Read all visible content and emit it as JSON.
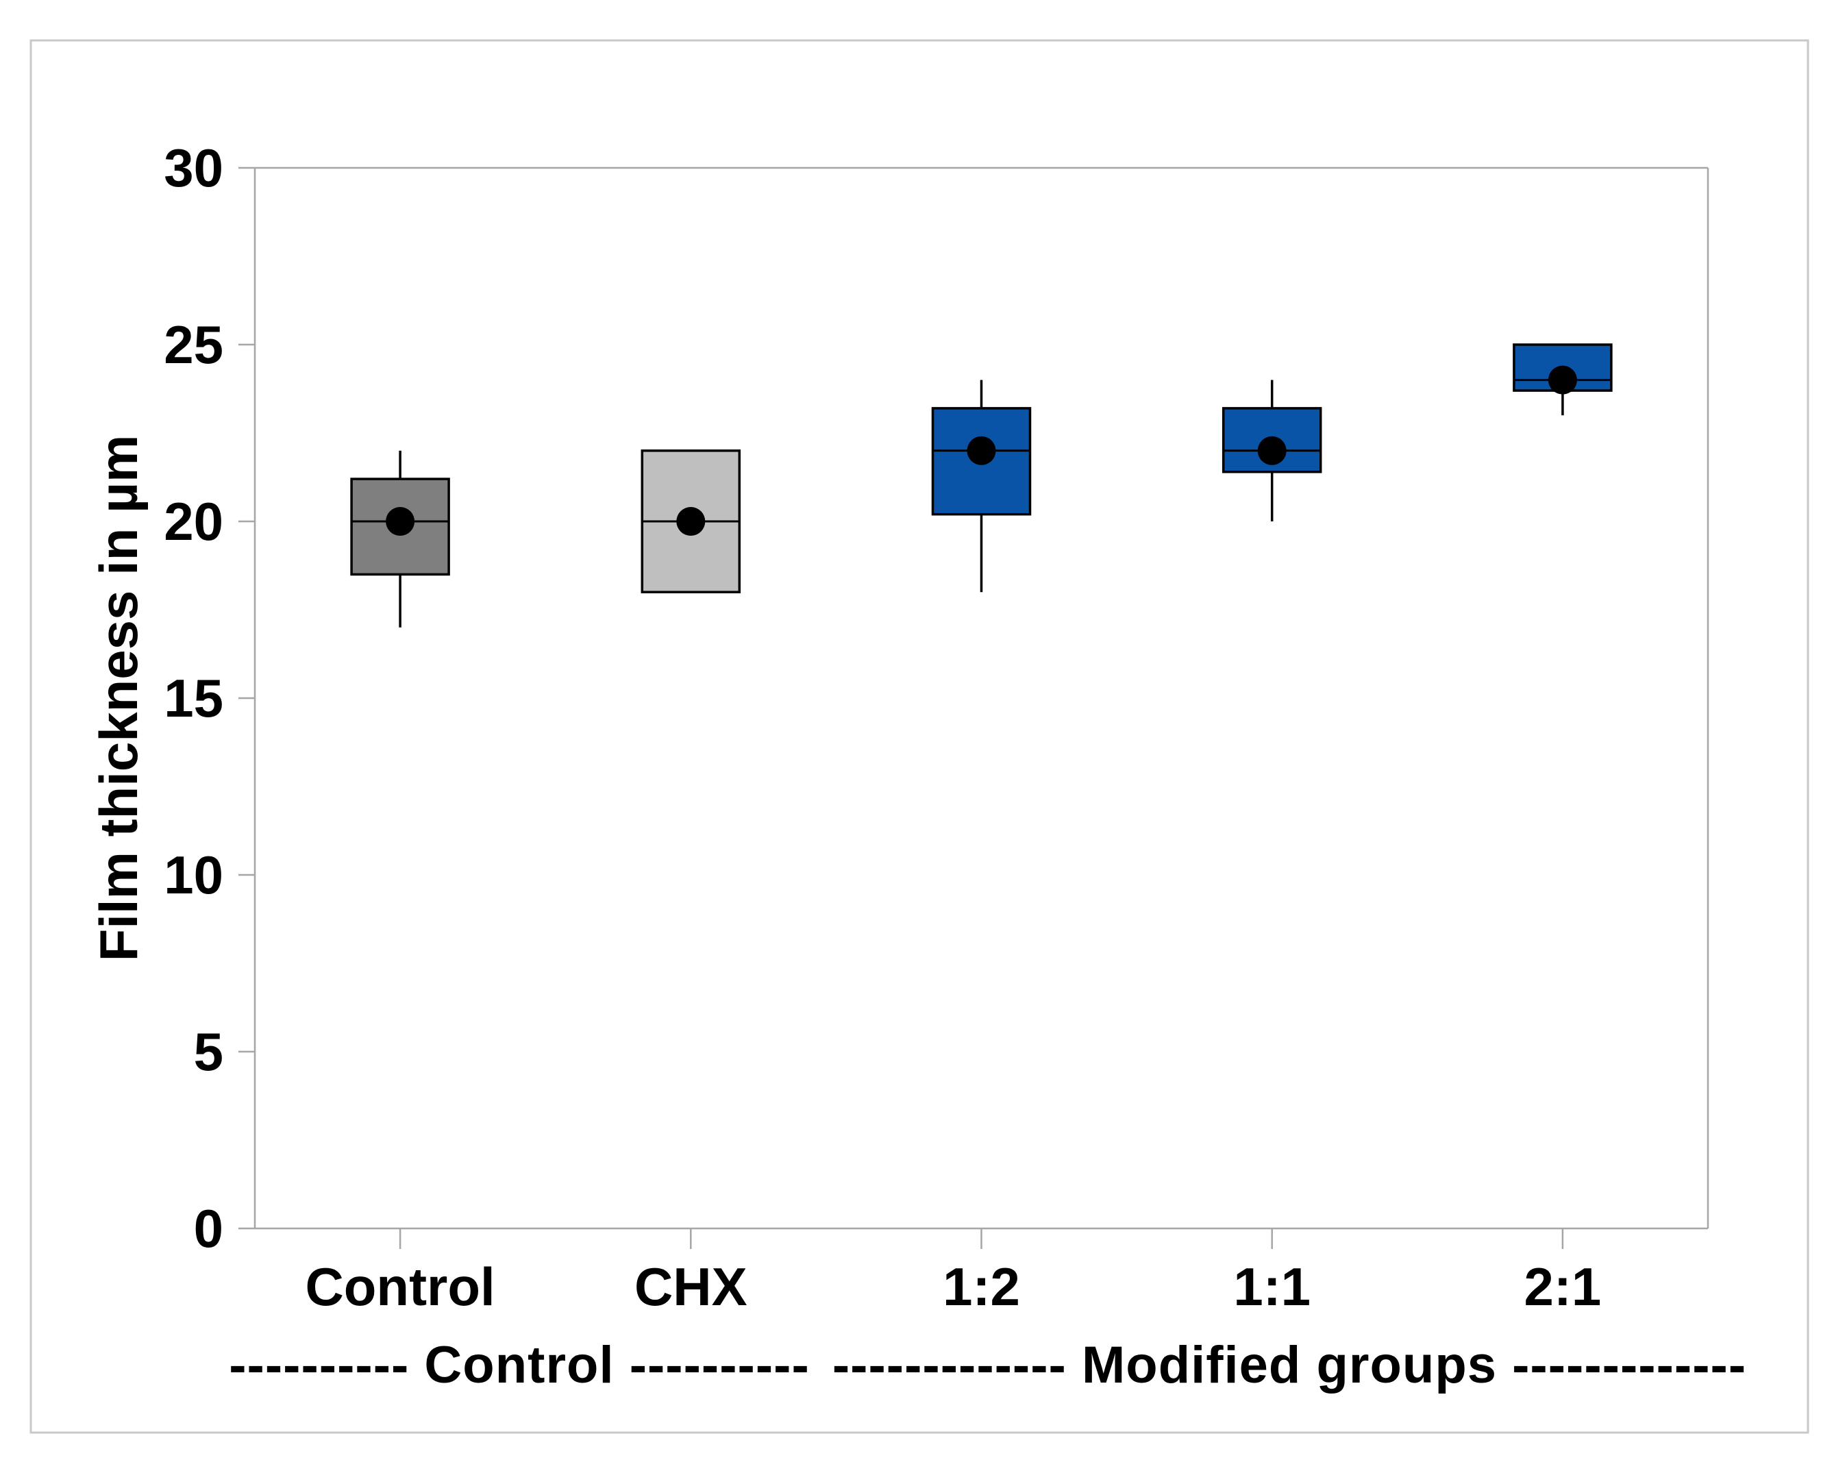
{
  "figure_title": "",
  "chart_data": {
    "type": "boxplot",
    "title": "",
    "xlabel": "",
    "ylabel": "Film thickness in µm",
    "ylim": [
      0,
      30
    ],
    "yticks": [
      0,
      5,
      10,
      15,
      20,
      25,
      30
    ],
    "grid": "off",
    "legend": "none",
    "categories": [
      "Control",
      "CHX",
      "1:2",
      "1:1",
      "2:1"
    ],
    "series": [
      {
        "category": "Control",
        "min": 17.0,
        "q1": 18.5,
        "median": 20.0,
        "q3": 21.2,
        "max": 22.0,
        "mean": 20.0,
        "fill": "#7f7f7f"
      },
      {
        "category": "CHX",
        "min": 18.0,
        "q1": 18.0,
        "median": 20.0,
        "q3": 22.0,
        "max": 22.0,
        "mean": 20.0,
        "fill": "#bfbfbf"
      },
      {
        "category": "1:2",
        "min": 18.0,
        "q1": 20.2,
        "median": 22.0,
        "q3": 23.2,
        "max": 24.0,
        "mean": 22.0,
        "fill": "#0a54a8"
      },
      {
        "category": "1:1",
        "min": 20.0,
        "q1": 21.4,
        "median": 22.0,
        "q3": 23.2,
        "max": 24.0,
        "mean": 22.0,
        "fill": "#0a54a8"
      },
      {
        "category": "2:1",
        "min": 23.0,
        "q1": 23.7,
        "median": 24.0,
        "q3": 25.0,
        "max": 25.0,
        "mean": 24.0,
        "fill": "#0a54a8"
      }
    ],
    "group_annotations": [
      {
        "name": "control-group",
        "text": "---------- Control ----------",
        "spans_categories": [
          "Control",
          "CHX"
        ]
      },
      {
        "name": "modified-group",
        "text": "------------- Modified groups -------------",
        "spans_categories": [
          "1:2",
          "1:1",
          "2:1"
        ]
      }
    ],
    "colors": {
      "box_blue": "#0a54a8",
      "box_dark_gray": "#7f7f7f",
      "box_light_gray": "#bfbfbf",
      "axis_line": "#a6a6a6",
      "frame_border": "#c9c9c9",
      "box_stroke": "#000000",
      "mean_dot": "#000000"
    }
  }
}
